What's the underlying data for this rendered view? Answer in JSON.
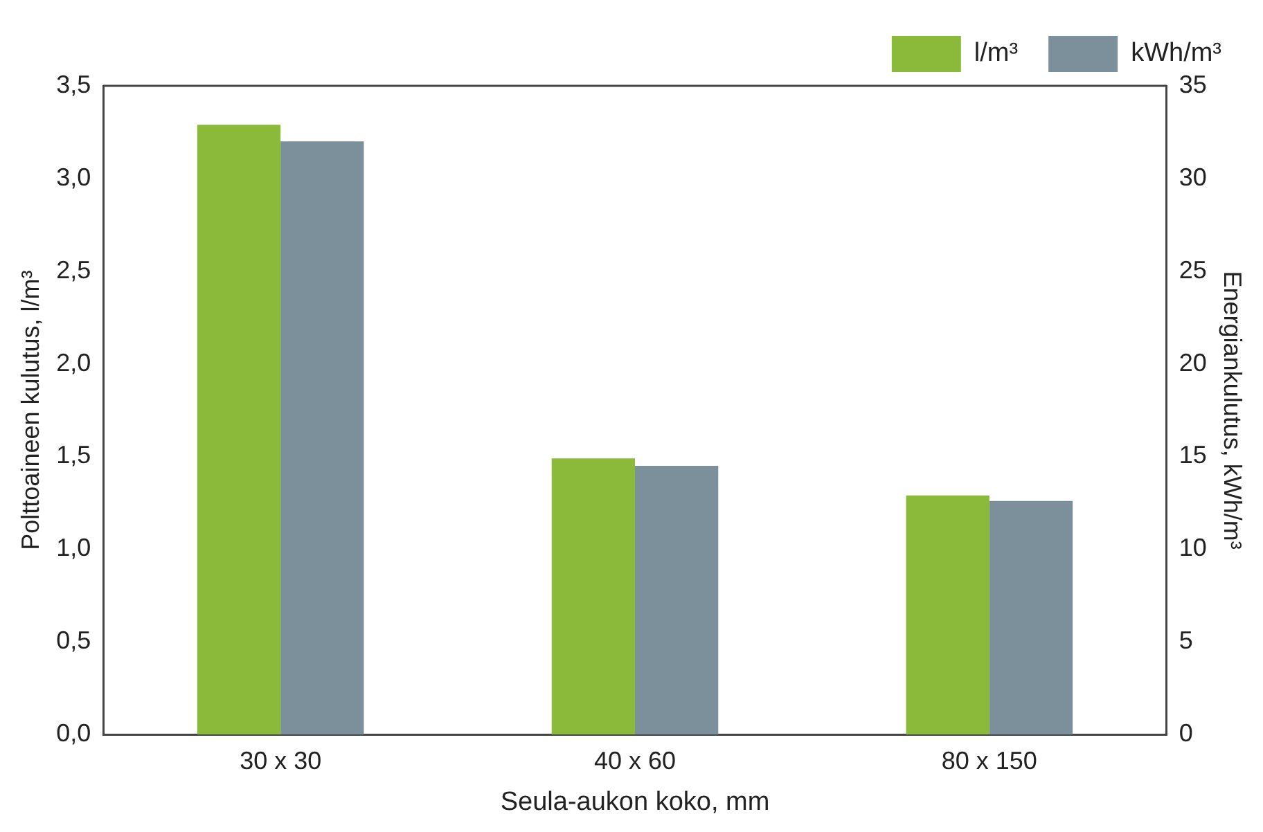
{
  "chart_data": {
    "type": "bar",
    "xlabel": "Seula-aukon koko, mm",
    "ylabel": "Polttoaineen kulutus, l/m³",
    "y2label": "Energiankulutus, kWh/m³",
    "categories": [
      "30 x 30",
      "40 x 60",
      "80 x 150"
    ],
    "series": [
      {
        "name": "l/m³",
        "color": "#8bba3a",
        "values": [
          3.29,
          1.49,
          1.29
        ]
      },
      {
        "name": "kWh/m³",
        "color": "#7b909a",
        "values": [
          32,
          14.5,
          12.6
        ],
        "axis": "y2"
      }
    ],
    "ylim": [
      0,
      3.5
    ],
    "yticks": [
      {
        "value": 0,
        "label": "0,0"
      },
      {
        "value": 0.5,
        "label": "0,5"
      },
      {
        "value": 1,
        "label": "1,0"
      },
      {
        "value": 1.5,
        "label": "1,5"
      },
      {
        "value": 2,
        "label": "2,0"
      },
      {
        "value": 2.5,
        "label": "2,5"
      },
      {
        "value": 3,
        "label": "3,0"
      },
      {
        "value": 3.5,
        "label": "3,5"
      }
    ],
    "y2lim": [
      0,
      35
    ],
    "y2ticks": [
      0,
      5,
      10,
      15,
      20,
      25,
      30,
      35
    ],
    "legend": "top right",
    "grid": false
  }
}
